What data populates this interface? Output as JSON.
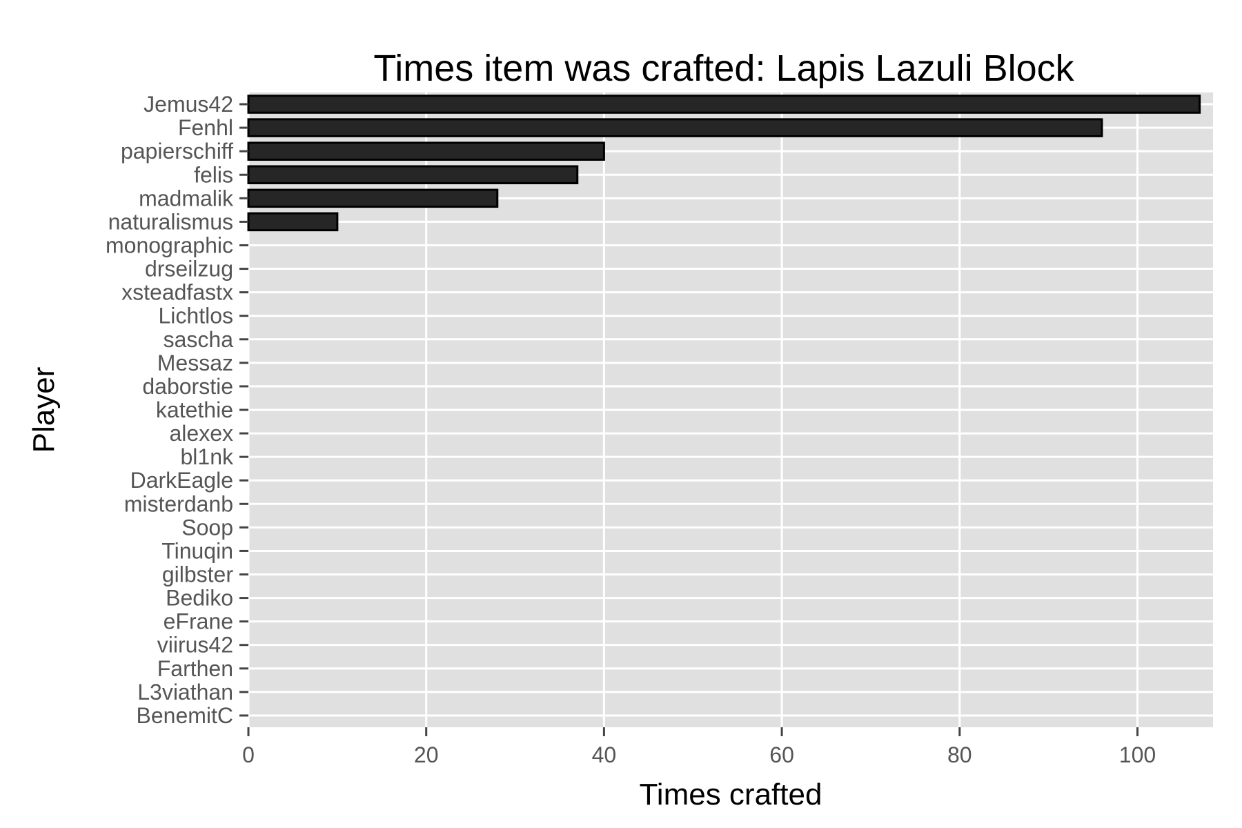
{
  "chart_data": {
    "type": "bar",
    "orientation": "horizontal",
    "title": "Times item was crafted: Lapis Lazuli Block",
    "xlabel": "Times crafted",
    "ylabel": "Player",
    "categories": [
      "Jemus42",
      "Fenhl",
      "papierschiff",
      "felis",
      "madmalik",
      "naturalismus",
      "monographic",
      "drseilzug",
      "xsteadfastx",
      "Lichtlos",
      "sascha",
      "Messaz",
      "daborstie",
      "katethie",
      "alexex",
      "bl1nk",
      "DarkEagle",
      "misterdanb",
      "Soop",
      "Tinuqin",
      "gilbster",
      "Bediko",
      "eFrane",
      "viirus42",
      "Farthen",
      "L3viathan",
      "BenemitC"
    ],
    "values": [
      107,
      96,
      40,
      37,
      28,
      10,
      0,
      0,
      0,
      0,
      0,
      0,
      0,
      0,
      0,
      0,
      0,
      0,
      0,
      0,
      0,
      0,
      0,
      0,
      0,
      0,
      0
    ],
    "xlim": [
      0,
      108.5
    ],
    "xticks": [
      0,
      20,
      40,
      60,
      80,
      100
    ],
    "grid": true,
    "legend": "none",
    "colors": {
      "panel": "#e0e0e0",
      "grid": "#ffffff",
      "bar_fill": "#262626",
      "bar_stroke": "#000000",
      "tick_text": "#555555",
      "tick_mark": "#444444"
    }
  }
}
